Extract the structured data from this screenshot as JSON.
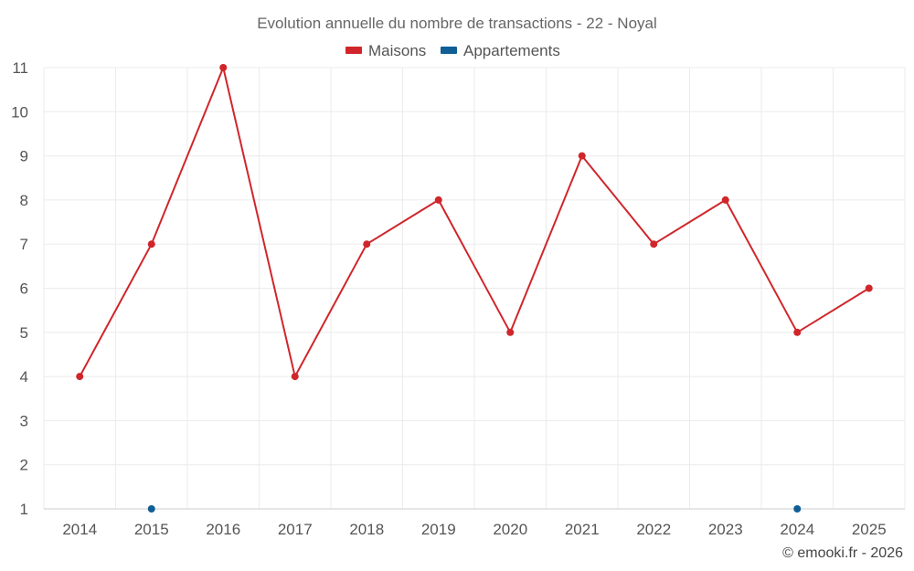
{
  "chart_data": {
    "type": "line",
    "title": "Evolution annuelle du nombre de transactions - 22 - Noyal",
    "categories": [
      "2014",
      "2015",
      "2016",
      "2017",
      "2018",
      "2019",
      "2020",
      "2021",
      "2022",
      "2023",
      "2024",
      "2025"
    ],
    "ylim": [
      1,
      11
    ],
    "yticks": [
      "1",
      "2",
      "3",
      "4",
      "5",
      "6",
      "7",
      "8",
      "9",
      "10",
      "11"
    ],
    "grid": true,
    "legend_position": "top-center",
    "series": [
      {
        "name": "Maisons",
        "color": "#d0262b",
        "line": true,
        "values": [
          4,
          7,
          11,
          4,
          7,
          8,
          5,
          9,
          7,
          8,
          5,
          6
        ]
      },
      {
        "name": "Appartements",
        "color": "#0f5f96",
        "line": false,
        "values": [
          null,
          1,
          null,
          null,
          null,
          null,
          null,
          null,
          null,
          null,
          1,
          null
        ]
      }
    ]
  },
  "credit": "© emooki.fr - 2026"
}
